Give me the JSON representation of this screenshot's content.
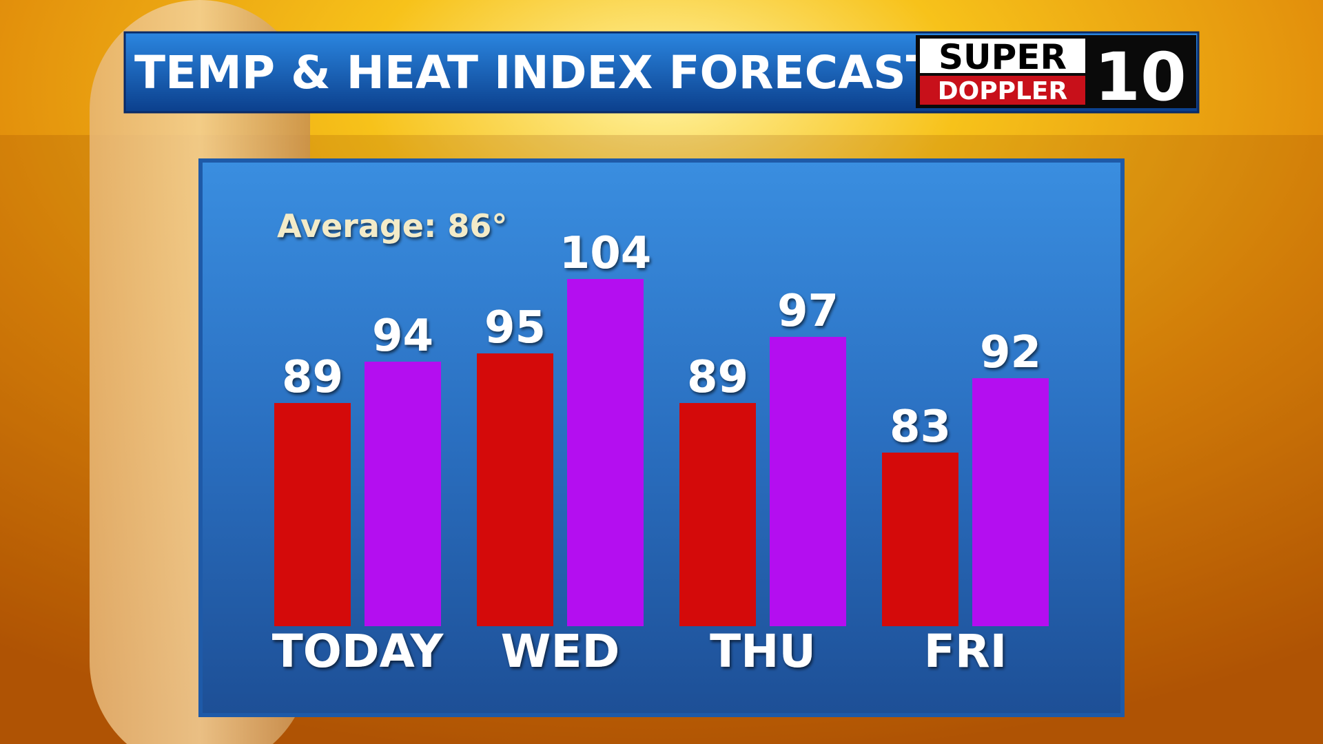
{
  "chart_data": {
    "type": "bar",
    "title": "TEMP & HEAT INDEX FORECAST",
    "annotation": "Average: 86°",
    "logo": {
      "line1": "SUPER",
      "line2": "DOPPLER",
      "number": "10"
    },
    "categories": [
      "TODAY",
      "WED",
      "THU",
      "FRI"
    ],
    "series": [
      {
        "color": "#d40a0a",
        "values": [
          89,
          95,
          89,
          83
        ]
      },
      {
        "color": "#b40ef0",
        "values": [
          94,
          104,
          97,
          92
        ]
      }
    ],
    "ylim": [
      62,
      106
    ]
  }
}
